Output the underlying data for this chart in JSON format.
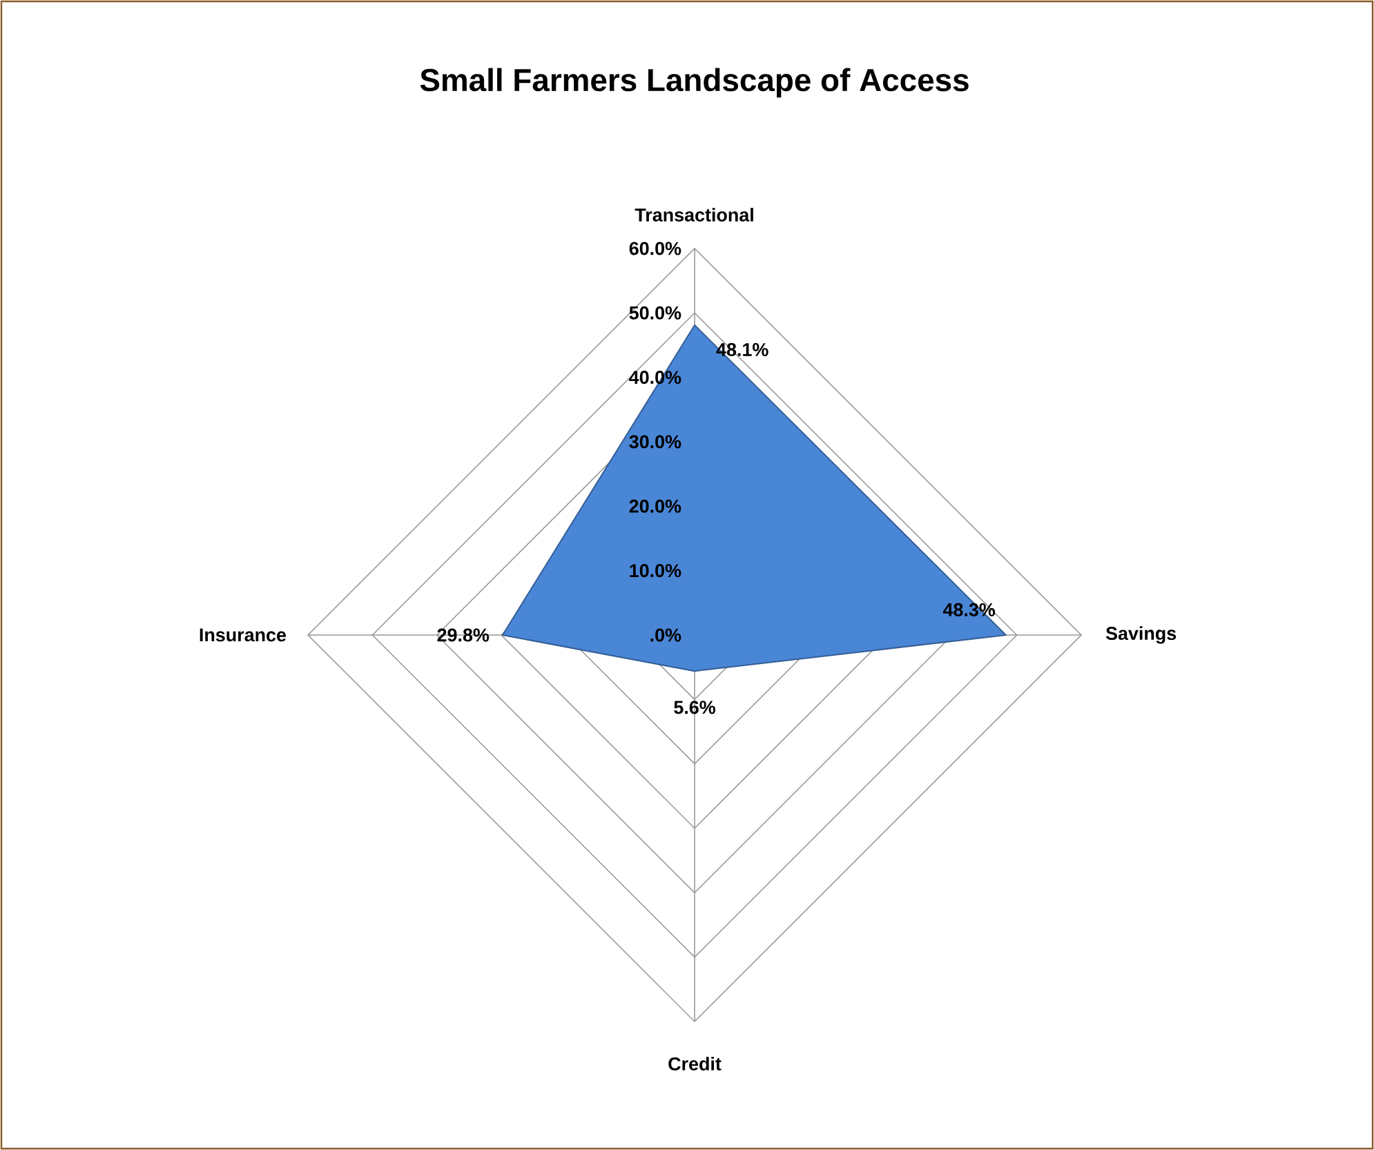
{
  "chart_data": {
    "type": "radar",
    "title": "Small Farmers Landscape of Access",
    "categories": [
      "Transactional",
      "Savings",
      "Credit",
      "Insurance"
    ],
    "series": [
      {
        "color": "#4a86d6",
        "values": [
          48.1,
          48.3,
          5.6,
          29.8
        ],
        "value_labels": [
          "48.1%",
          "48.3%",
          "5.6%",
          "29.8%"
        ]
      }
    ],
    "ylim": [
      0,
      60
    ],
    "yticks": [
      {
        "value": 0,
        "label": ".0%"
      },
      {
        "value": 10,
        "label": "10.0%"
      },
      {
        "value": 20,
        "label": "20.0%"
      },
      {
        "value": 30,
        "label": "30.0%"
      },
      {
        "value": 40,
        "label": "40.0%"
      },
      {
        "value": 50,
        "label": "50.0%"
      },
      {
        "value": 60,
        "label": "60.0%"
      }
    ],
    "grid": true
  }
}
